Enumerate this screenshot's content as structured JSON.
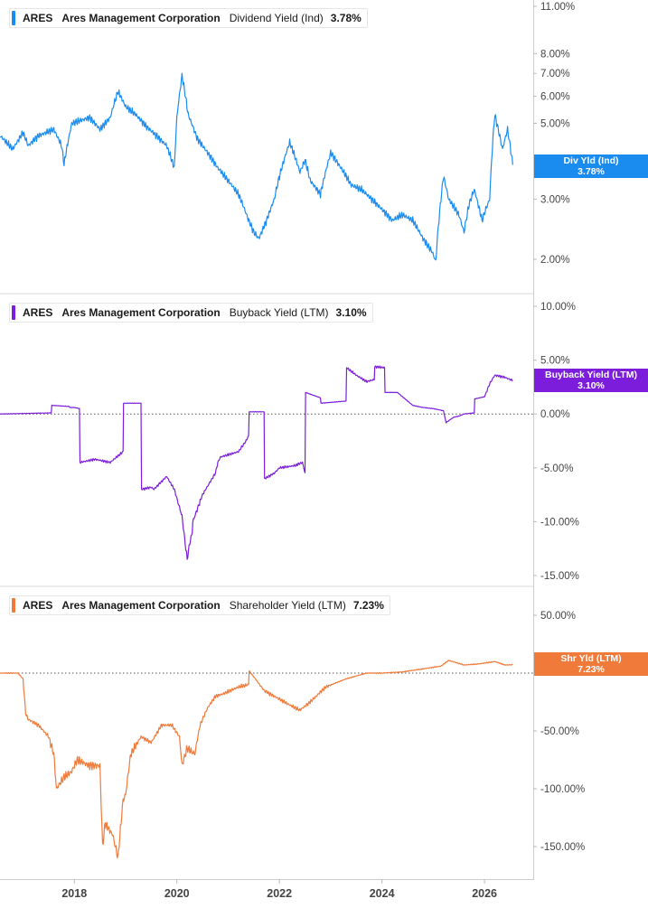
{
  "x_axis": {
    "labels": [
      "2018",
      "2020",
      "2022",
      "2024",
      "2026"
    ],
    "range": [
      2016.55,
      2026.95
    ]
  },
  "chart_data": [
    {
      "type": "line",
      "ticker": "ARES",
      "company": "Ares Management Corporation",
      "metric": "Dividend Yield (Ind)",
      "current_value": "3.78%",
      "color": "#1a8cf0",
      "scale": "log",
      "ylim": [
        1.75,
        11.0
      ],
      "y_ticks": [
        {
          "v": 11,
          "label": "11.00%"
        },
        {
          "v": 8,
          "label": "8.00%"
        },
        {
          "v": 7,
          "label": "7.00%"
        },
        {
          "v": 6,
          "label": "6.00%"
        },
        {
          "v": 5,
          "label": "5.00%"
        },
        {
          "v": 3,
          "label": "3.00%"
        },
        {
          "v": 2,
          "label": "2.00%"
        }
      ],
      "badge": {
        "line1": "Div Yld (Ind)",
        "line2": "3.78%"
      },
      "x": [
        2016.55,
        2016.8,
        2017.0,
        2017.1,
        2017.3,
        2017.6,
        2017.75,
        2017.8,
        2017.95,
        2018.3,
        2018.5,
        2018.7,
        2018.85,
        2019.0,
        2019.2,
        2019.4,
        2019.6,
        2019.8,
        2019.95,
        2020.0,
        2020.1,
        2020.22,
        2020.4,
        2020.6,
        2020.8,
        2021.0,
        2021.2,
        2021.4,
        2021.5,
        2021.6,
        2021.75,
        2021.9,
        2022.0,
        2022.2,
        2022.4,
        2022.5,
        2022.6,
        2022.8,
        2023.0,
        2023.2,
        2023.4,
        2023.6,
        2023.8,
        2024.0,
        2024.2,
        2024.4,
        2024.6,
        2024.8,
        2024.98,
        2025.05,
        2025.1,
        2025.2,
        2025.3,
        2025.5,
        2025.6,
        2025.7,
        2025.8,
        2025.95,
        2026.1,
        2026.2,
        2026.35,
        2026.45,
        2026.55
      ],
      "y": [
        4.6,
        4.2,
        4.7,
        4.3,
        4.6,
        4.8,
        4.3,
        3.8,
        5.0,
        5.2,
        4.8,
        5.2,
        6.2,
        5.6,
        5.3,
        4.9,
        4.6,
        4.3,
        3.7,
        5.2,
        6.9,
        5.3,
        4.5,
        4.1,
        3.7,
        3.4,
        3.1,
        2.6,
        2.4,
        2.3,
        2.6,
        3.0,
        3.5,
        4.4,
        3.6,
        3.9,
        3.4,
        3.1,
        4.1,
        3.7,
        3.3,
        3.2,
        3.0,
        2.8,
        2.6,
        2.7,
        2.6,
        2.3,
        2.1,
        1.97,
        2.5,
        3.5,
        3.0,
        2.7,
        2.4,
        2.9,
        3.2,
        2.6,
        3.0,
        5.3,
        4.2,
        4.8,
        3.78
      ]
    },
    {
      "type": "line",
      "ticker": "ARES",
      "company": "Ares Management Corporation",
      "metric": "Buyback Yield (LTM)",
      "current_value": "3.10%",
      "color": "#7c1ddb",
      "scale": "linear",
      "ylim": [
        -15,
        10
      ],
      "zero_line": true,
      "y_ticks": [
        {
          "v": 10,
          "label": "10.00%"
        },
        {
          "v": 5,
          "label": "5.00%"
        },
        {
          "v": 0,
          "label": "0.00%"
        },
        {
          "v": -5,
          "label": "-5.00%"
        },
        {
          "v": -10,
          "label": "-10.00%"
        },
        {
          "v": -15,
          "label": "-15.00%"
        }
      ],
      "badge": {
        "line1": "Buyback Yield (LTM)",
        "line2": "3.10%"
      },
      "x": [
        2016.55,
        2017.55,
        2017.56,
        2017.9,
        2017.91,
        2018.0,
        2018.1,
        2018.11,
        2018.4,
        2018.7,
        2018.95,
        2018.96,
        2019.3,
        2019.31,
        2019.5,
        2019.55,
        2019.8,
        2019.95,
        2020.1,
        2020.2,
        2020.25,
        2020.3,
        2020.31,
        2020.5,
        2020.75,
        2020.8,
        2020.85,
        2021.2,
        2021.35,
        2021.4,
        2021.41,
        2021.7,
        2021.71,
        2021.9,
        2022.0,
        2022.3,
        2022.45,
        2022.5,
        2022.51,
        2022.8,
        2022.81,
        2023.3,
        2023.31,
        2023.5,
        2023.7,
        2023.85,
        2023.86,
        2024.05,
        2024.06,
        2024.3,
        2024.5,
        2024.6,
        2024.8,
        2025.0,
        2025.2,
        2025.25,
        2025.4,
        2025.5,
        2025.6,
        2025.8,
        2025.81,
        2026.0,
        2026.1,
        2026.2,
        2026.4,
        2026.55
      ],
      "y": [
        0,
        0.1,
        0.8,
        0.7,
        0.6,
        0.6,
        0.5,
        -4.5,
        -4.2,
        -4.5,
        -3.5,
        1.0,
        1.0,
        -7.0,
        -6.8,
        -7.0,
        -5.8,
        -7.0,
        -9.5,
        -13.5,
        -12.0,
        -11.0,
        -10.0,
        -7.5,
        -5.5,
        -4.5,
        -4.0,
        -3.5,
        -2.5,
        -2.0,
        0.2,
        0.2,
        -6.0,
        -5.5,
        -5.0,
        -4.8,
        -4.5,
        -5.5,
        2.0,
        1.5,
        1.0,
        1.2,
        4.3,
        3.6,
        3.0,
        3.2,
        4.4,
        4.3,
        2.0,
        2.0,
        1.2,
        0.8,
        0.6,
        0.5,
        0.3,
        -0.8,
        -0.3,
        -0.2,
        0.0,
        0.1,
        1.4,
        1.6,
        2.8,
        3.6,
        3.4,
        3.1
      ]
    },
    {
      "type": "line",
      "ticker": "ARES",
      "company": "Ares Management Corporation",
      "metric": "Shareholder Yield (LTM)",
      "current_value": "7.23%",
      "color": "#f07a3a",
      "scale": "linear",
      "ylim": [
        -180,
        60
      ],
      "zero_line": true,
      "y_ticks": [
        {
          "v": 50,
          "label": "50.00%"
        },
        {
          "v": -50,
          "label": "-50.00%"
        },
        {
          "v": -100,
          "label": "-100.00%"
        },
        {
          "v": -150,
          "label": "-150.00%"
        }
      ],
      "badge": {
        "line1": "Shr Yld (LTM)",
        "line2": "7.23%"
      },
      "x": [
        2016.55,
        2016.9,
        2017.0,
        2017.05,
        2017.1,
        2017.3,
        2017.5,
        2017.6,
        2017.65,
        2017.8,
        2017.95,
        2018.05,
        2018.3,
        2018.5,
        2018.55,
        2018.6,
        2018.75,
        2018.85,
        2018.95,
        2019.0,
        2019.1,
        2019.3,
        2019.5,
        2019.7,
        2019.9,
        2020.05,
        2020.1,
        2020.2,
        2020.35,
        2020.45,
        2020.6,
        2020.75,
        2020.9,
        2021.2,
        2021.4,
        2021.41,
        2021.7,
        2021.9,
        2022.1,
        2022.3,
        2022.4,
        2022.6,
        2022.9,
        2023.3,
        2023.7,
        2024.0,
        2024.4,
        2024.7,
        2025.0,
        2025.15,
        2025.3,
        2025.6,
        2025.9,
        2026.2,
        2026.4,
        2026.55
      ],
      "y": [
        0,
        0,
        -5,
        -35,
        -40,
        -45,
        -55,
        -70,
        -100,
        -90,
        -85,
        -75,
        -80,
        -80,
        -150,
        -130,
        -140,
        -160,
        -110,
        -105,
        -70,
        -55,
        -60,
        -45,
        -45,
        -55,
        -80,
        -65,
        -70,
        -45,
        -30,
        -20,
        -18,
        -12,
        -10,
        2,
        -15,
        -20,
        -25,
        -30,
        -32,
        -25,
        -12,
        -5,
        0,
        0,
        1,
        3,
        5,
        6,
        11,
        7,
        8,
        10,
        7,
        7.23
      ]
    }
  ]
}
